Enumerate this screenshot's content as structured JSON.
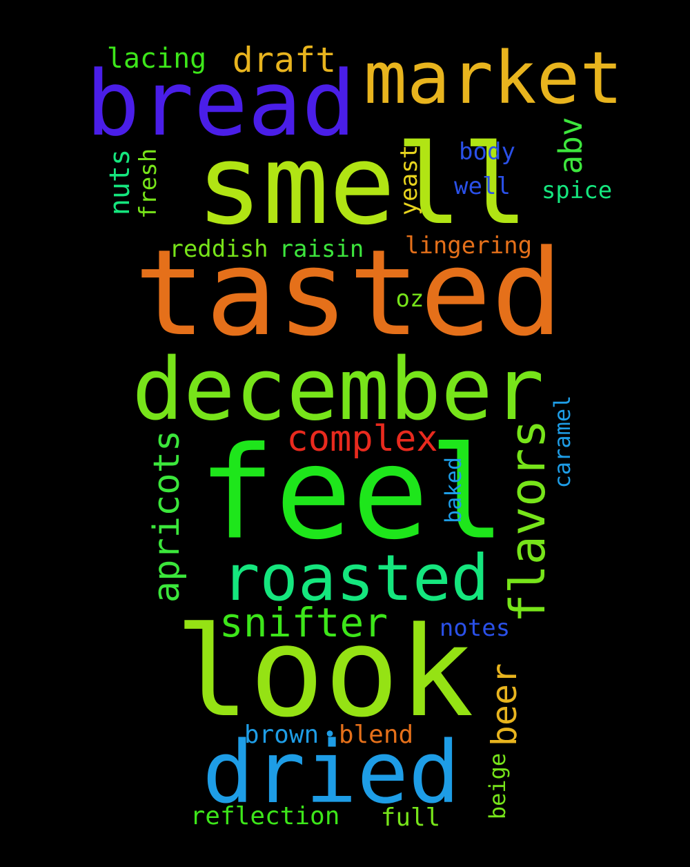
{
  "words": [
    {
      "text": "feel",
      "color": "#1ee61b"
    },
    {
      "text": "look",
      "color": "#95e214"
    },
    {
      "text": "tasted",
      "color": "#e5701a"
    },
    {
      "text": "smell",
      "color": "#b1e414"
    },
    {
      "text": "december",
      "color": "#77e41a"
    },
    {
      "text": "bread",
      "color": "#4a1ee8"
    },
    {
      "text": "market",
      "color": "#e8b41e"
    },
    {
      "text": "dried",
      "color": "#1e9de6"
    },
    {
      "text": "roasted",
      "color": "#15e67e"
    },
    {
      "text": "flavors",
      "color": "#77e41a"
    },
    {
      "text": "apricots",
      "color": "#3be63b"
    },
    {
      "text": "snifter",
      "color": "#3de61a"
    },
    {
      "text": "complex",
      "color": "#e82a1e"
    },
    {
      "text": "draft",
      "color": "#e8b41e"
    },
    {
      "text": "lacing",
      "color": "#3de61a"
    },
    {
      "text": "beer",
      "color": "#e8b41e"
    },
    {
      "text": "abv",
      "color": "#3de63d"
    },
    {
      "text": "nuts",
      "color": "#15e67e"
    },
    {
      "text": "fresh",
      "color": "#77e41a"
    },
    {
      "text": "yeast",
      "color": "#e8d41e"
    },
    {
      "text": "body",
      "color": "#2a50e8"
    },
    {
      "text": "well",
      "color": "#2a50e8"
    },
    {
      "text": "spice",
      "color": "#15e67e"
    },
    {
      "text": "reddish",
      "color": "#77e41a"
    },
    {
      "text": "raisin",
      "color": "#3de63d"
    },
    {
      "text": "lingering",
      "color": "#e5701a"
    },
    {
      "text": "oz",
      "color": "#77e41a"
    },
    {
      "text": "caramel",
      "color": "#1e9de6"
    },
    {
      "text": "baked",
      "color": "#1e9de6"
    },
    {
      "text": "notes",
      "color": "#2a50e8"
    },
    {
      "text": "brown",
      "color": "#1e9de6"
    },
    {
      "text": "blend",
      "color": "#e5701a"
    },
    {
      "text": "beige",
      "color": "#77e41a"
    },
    {
      "text": "reflection",
      "color": "#3de61a"
    },
    {
      "text": "full",
      "color": "#77e41a"
    }
  ],
  "separator": {
    "symbol": "•",
    "color": "#1e9de6"
  }
}
